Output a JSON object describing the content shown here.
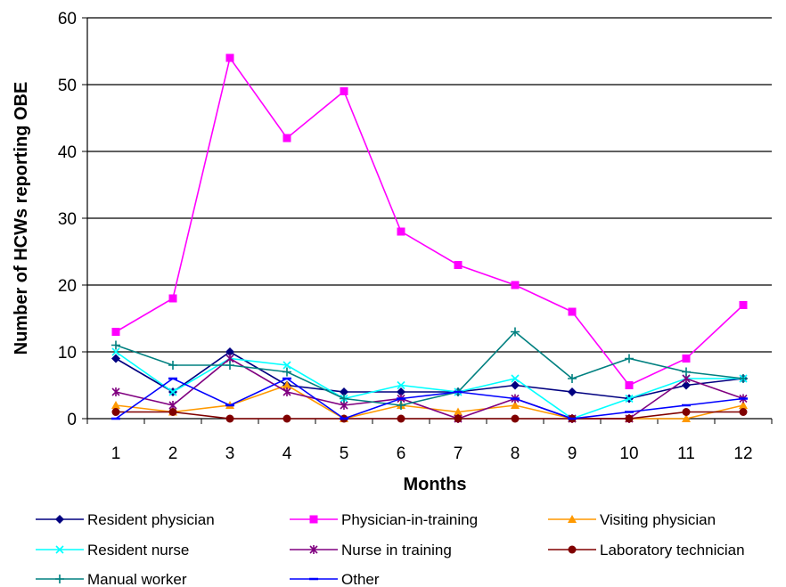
{
  "chart_data": {
    "type": "line",
    "title": "",
    "xlabel": "Months",
    "ylabel": "Number of HCWs reporting OBE",
    "x": [
      1,
      2,
      3,
      4,
      5,
      6,
      7,
      8,
      9,
      10,
      11,
      12
    ],
    "ylim": [
      0,
      60
    ],
    "yticks": [
      0,
      10,
      20,
      30,
      40,
      50,
      60
    ],
    "grid": "horizontal",
    "legend_position": "bottom",
    "series": [
      {
        "name": "Resident physician",
        "color": "#000080",
        "marker": "diamond",
        "values": [
          9,
          4,
          10,
          5,
          4,
          4,
          4,
          5,
          4,
          3,
          5,
          6
        ]
      },
      {
        "name": "Physician-in-training",
        "color": "#ff00ff",
        "marker": "square",
        "values": [
          13,
          18,
          54,
          42,
          49,
          28,
          23,
          20,
          16,
          5,
          9,
          17
        ]
      },
      {
        "name": "Visiting physician",
        "color": "#ff9900",
        "marker": "triangle",
        "values": [
          2,
          1,
          2,
          5,
          0,
          2,
          1,
          2,
          0,
          0,
          0,
          2
        ]
      },
      {
        "name": "Resident nurse",
        "color": "#00ffff",
        "marker": "x",
        "values": [
          10,
          4,
          9,
          8,
          3,
          5,
          4,
          6,
          0,
          3,
          6,
          6
        ]
      },
      {
        "name": "Nurse in training",
        "color": "#800080",
        "marker": "star",
        "values": [
          4,
          2,
          9,
          4,
          2,
          3,
          0,
          3,
          0,
          0,
          6,
          3
        ]
      },
      {
        "name": "Laboratory technician",
        "color": "#800000",
        "marker": "circle",
        "values": [
          1,
          1,
          0,
          0,
          0,
          0,
          0,
          0,
          0,
          0,
          1,
          1
        ]
      },
      {
        "name": "Manual worker",
        "color": "#008080",
        "marker": "plus",
        "values": [
          11,
          8,
          8,
          7,
          3,
          2,
          4,
          13,
          6,
          9,
          7,
          6
        ]
      },
      {
        "name": "Other",
        "color": "#0000ff",
        "marker": "dash",
        "values": [
          0,
          6,
          2,
          6,
          0,
          3,
          4,
          3,
          0,
          1,
          2,
          3
        ]
      }
    ]
  }
}
